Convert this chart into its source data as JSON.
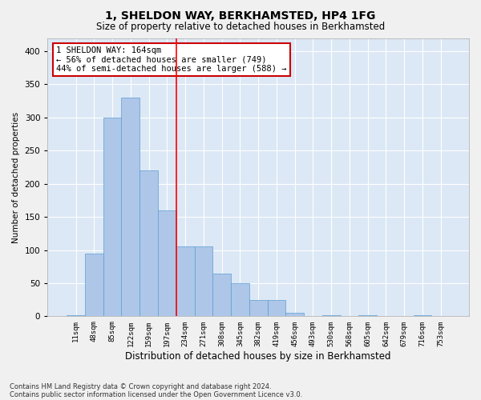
{
  "title1": "1, SHELDON WAY, BERKHAMSTED, HP4 1FG",
  "title2": "Size of property relative to detached houses in Berkhamsted",
  "xlabel": "Distribution of detached houses by size in Berkhamsted",
  "ylabel": "Number of detached properties",
  "footnote1": "Contains HM Land Registry data © Crown copyright and database right 2024.",
  "footnote2": "Contains public sector information licensed under the Open Government Licence v3.0.",
  "categories": [
    "11sqm",
    "48sqm",
    "85sqm",
    "122sqm",
    "159sqm",
    "197sqm",
    "234sqm",
    "271sqm",
    "308sqm",
    "345sqm",
    "382sqm",
    "419sqm",
    "456sqm",
    "493sqm",
    "530sqm",
    "568sqm",
    "605sqm",
    "642sqm",
    "679sqm",
    "716sqm",
    "753sqm"
  ],
  "values": [
    2,
    95,
    300,
    330,
    220,
    160,
    105,
    105,
    65,
    50,
    25,
    25,
    5,
    1,
    2,
    1,
    2,
    1,
    1,
    2,
    1
  ],
  "bar_color": "#aec6e8",
  "bar_edge_color": "#5a9fd4",
  "background_color": "#dce8f5",
  "grid_color": "#ffffff",
  "fig_background": "#f0f0f0",
  "red_line_x": 5.5,
  "annotation_text": "1 SHELDON WAY: 164sqm\n← 56% of detached houses are smaller (749)\n44% of semi-detached houses are larger (588) →",
  "annotation_box_color": "#ffffff",
  "annotation_box_edge": "#cc0000",
  "ylim": [
    0,
    420
  ],
  "yticks": [
    0,
    50,
    100,
    150,
    200,
    250,
    300,
    350,
    400
  ]
}
